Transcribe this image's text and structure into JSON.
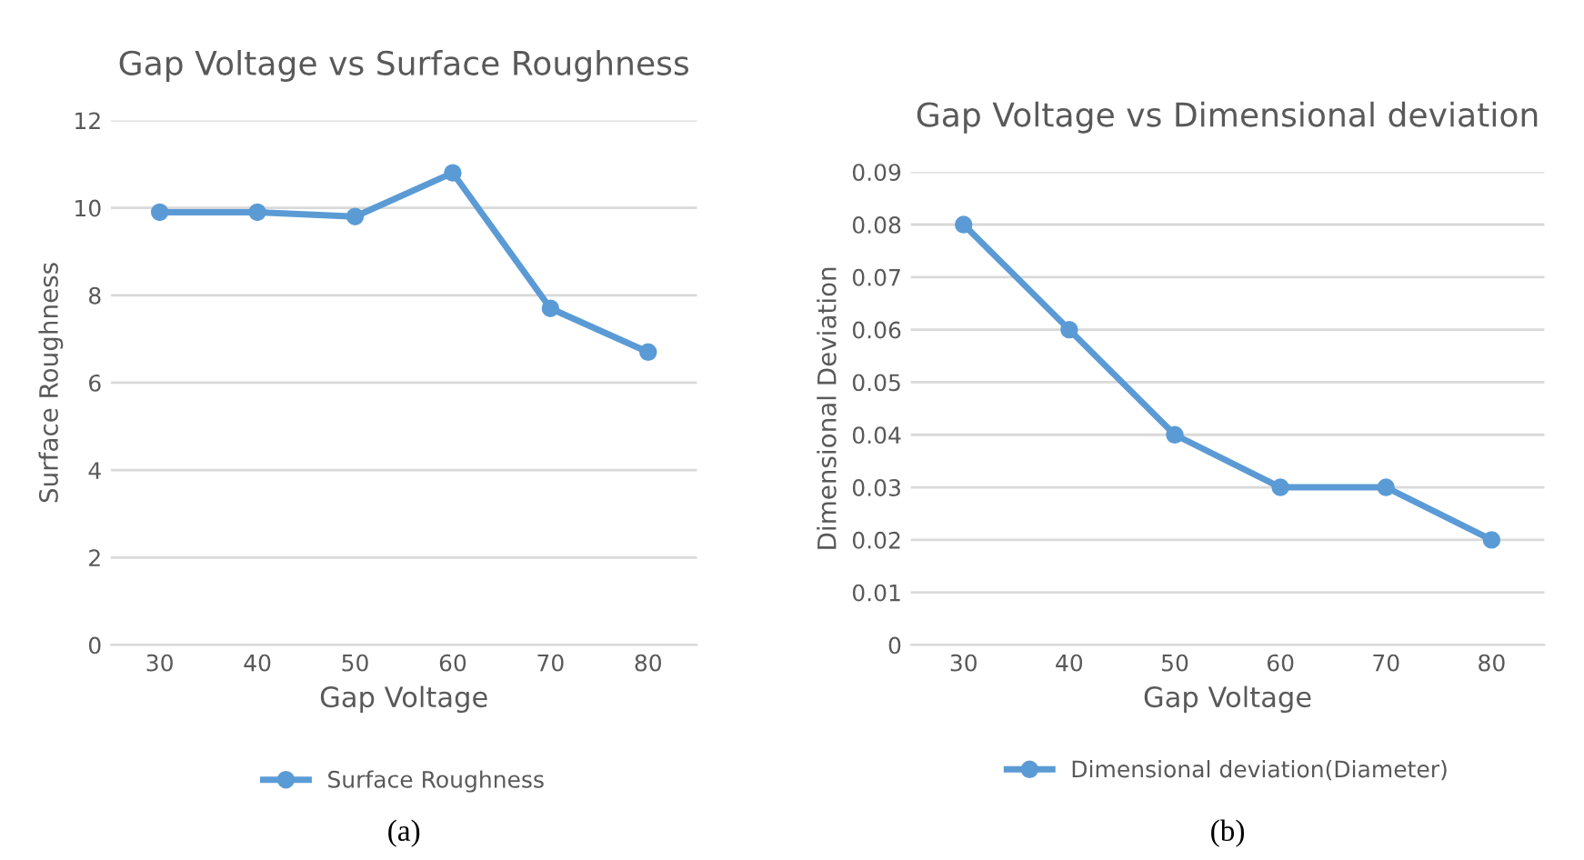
{
  "chart_data": [
    {
      "type": "line",
      "title": "Gap Voltage vs Surface Roughness",
      "xlabel": "Gap Voltage",
      "ylabel": "Surface Roughness",
      "categories": [
        "30",
        "40",
        "50",
        "60",
        "70",
        "80"
      ],
      "series": [
        {
          "name": "Surface Roughness",
          "color": "#5b9bd5",
          "values": [
            9.9,
            9.9,
            9.8,
            10.8,
            7.7,
            6.7
          ]
        }
      ],
      "ylim": [
        0,
        12
      ],
      "yticks": [
        0,
        2,
        4,
        6,
        8,
        10,
        12
      ],
      "grid": "y",
      "legend": "bottom",
      "marker": "circle",
      "line_style": "solid",
      "annotations": [
        "(a)"
      ]
    },
    {
      "type": "line",
      "title": "Gap Voltage vs Dimensional deviation",
      "xlabel": "Gap Voltage",
      "ylabel": "Dimensional Deviation",
      "categories": [
        "30",
        "40",
        "50",
        "60",
        "70",
        "80"
      ],
      "series": [
        {
          "name": "Dimensional deviation(Diameter)",
          "color": "#5b9bd5",
          "values": [
            0.08,
            0.06,
            0.04,
            0.03,
            0.03,
            0.02
          ]
        }
      ],
      "ylim": [
        0,
        0.09
      ],
      "yticks": [
        0,
        0.01,
        0.02,
        0.03,
        0.04,
        0.05,
        0.06,
        0.07,
        0.08,
        0.09
      ],
      "grid": "y",
      "legend": "bottom",
      "marker": "circle",
      "line_style": "solid",
      "annotations": [
        "(b)"
      ]
    }
  ]
}
